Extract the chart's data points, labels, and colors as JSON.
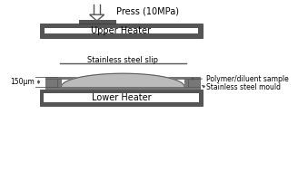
{
  "bg_color": "#ffffff",
  "dark_color": "#555555",
  "light_gray": "#bbbbbb",
  "mould_color": "#777777",
  "text_color": "#000000",
  "press_text": "Press (10MPa)",
  "upper_heater_text": "Upper Heater",
  "lower_heater_text": "Lower Heater",
  "stainless_slip_text": "Stainless steel slip",
  "polymer_sample_text": "Polymer/diluent sample",
  "stainless_mould_text": "Stainless steel mould",
  "dim_text": "150μm",
  "font_size_main": 7,
  "font_size_label": 6,
  "font_size_dim": 5.5
}
